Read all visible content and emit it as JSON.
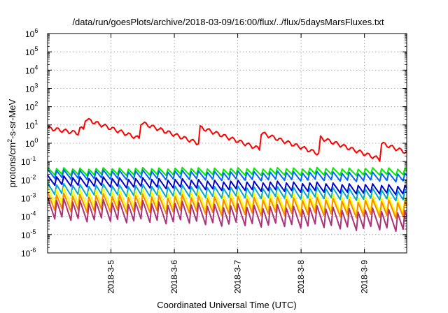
{
  "chart_data": {
    "type": "line",
    "title": "/data/run/goesPlots/archive/2018-03-09/16:00/flux/../flux/5daysMarsFluxes.txt",
    "xlabel": "Coordinated Universal Time (UTC)",
    "ylabel_parts": {
      "base": "protons/cm",
      "sup": "2",
      "rest": "-s-sr-MeV"
    },
    "yscale": "log",
    "ylim_exp": [
      -6,
      6
    ],
    "y_ticks": [
      {
        "base": "10",
        "exp": "6"
      },
      {
        "base": "10",
        "exp": "5"
      },
      {
        "base": "10",
        "exp": "4"
      },
      {
        "base": "10",
        "exp": "3"
      },
      {
        "base": "10",
        "exp": "2"
      },
      {
        "base": "10",
        "exp": "1"
      },
      {
        "base": "10",
        "exp": "0"
      },
      {
        "base": "10",
        "exp": "-1"
      },
      {
        "base": "10",
        "exp": "-2"
      },
      {
        "base": "10",
        "exp": "-3"
      },
      {
        "base": "10",
        "exp": "-4"
      },
      {
        "base": "10",
        "exp": "-5"
      },
      {
        "base": "10",
        "exp": "-6"
      }
    ],
    "xlim": [
      "2018-03-04",
      "2018-03-09 16:00"
    ],
    "x_ticks": [
      "2018-3-5",
      "2018-3-6",
      "2018-3-7",
      "2018-3-8",
      "2018-3-9"
    ],
    "grid": true,
    "series": [
      {
        "color": "#ff0000",
        "base": [
          5.0,
          0.1
        ],
        "saw": 0.9
      },
      {
        "color": "#00ee00",
        "base": [
          0.028,
          0.028
        ],
        "saw": 0.45
      },
      {
        "color": "#0066ff",
        "base": [
          0.02,
          0.014
        ],
        "saw": 0.55
      },
      {
        "color": "#0000cc",
        "base": [
          0.009,
          0.0028
        ],
        "saw": 0.6
      },
      {
        "color": "#00aacc",
        "base": [
          0.003,
          0.0015
        ],
        "saw": 0.7
      },
      {
        "color": "#ffff00",
        "base": [
          0.0012,
          0.0004
        ],
        "saw": 1.1
      },
      {
        "color": "#ff8800",
        "base": [
          0.0006,
          0.00025
        ],
        "saw": 1.1
      },
      {
        "color": "#aa3377",
        "base": [
          0.00025,
          6e-05
        ],
        "saw": 1.3
      }
    ]
  }
}
